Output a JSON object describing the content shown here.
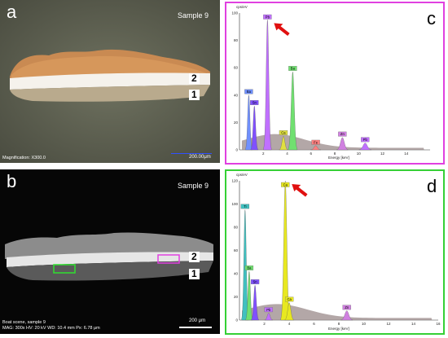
{
  "panels": {
    "a": {
      "letter": "a",
      "sample": "Sample 9",
      "layer1": "1",
      "layer2": "2",
      "magnification": "Magnification: X300.0",
      "scalebar": "200.00μm"
    },
    "b": {
      "letter": "b",
      "sample": "Sample 9",
      "layer1": "1",
      "layer2": "2",
      "caption_line1": "Boat scene, sample 9",
      "caption_line2": "MAG: 300x   HV: 20 kV   WD: 10.4 mm   Px: 6.78 μm",
      "scalebar": "200 μm"
    },
    "c": {
      "letter": "c",
      "y_unit": "cps/eV",
      "x_label": "Energy [keV]",
      "y_ticks": [
        "100",
        "80",
        "60",
        "40",
        "20",
        "0"
      ],
      "x_ticks": [
        "2",
        "4",
        "6",
        "8",
        "10",
        "12",
        "14"
      ],
      "frame_color": "#e040e0"
    },
    "d": {
      "letter": "d",
      "y_unit": "cps/eV",
      "x_label": "Energy [keV]",
      "y_ticks": [
        "120",
        "100",
        "80",
        "60",
        "40",
        "20",
        "0"
      ],
      "x_ticks": [
        "2",
        "4",
        "6",
        "8",
        "10",
        "12",
        "14",
        "16"
      ],
      "frame_color": "#35d035"
    }
  },
  "chart_data": [
    {
      "type": "area",
      "panel": "c",
      "xlabel": "Energy [keV]",
      "ylabel": "cps/eV",
      "xlim": [
        0,
        16
      ],
      "ylim": [
        0,
        100
      ],
      "peaks": [
        {
          "label": "Pb",
          "x": 2.35,
          "y": 95,
          "color": "#c070ff"
        },
        {
          "label": "Ba",
          "x": 4.47,
          "y": 57,
          "color": "#70e070"
        },
        {
          "label": "Ba",
          "x": 0.78,
          "y": 40,
          "color": "#7090ff"
        },
        {
          "label": "Sn",
          "x": 1.25,
          "y": 32,
          "color": "#8050ff"
        },
        {
          "label": "Ca",
          "x": 3.69,
          "y": 10,
          "color": "#e0e040"
        },
        {
          "label": "Zn",
          "x": 8.64,
          "y": 9,
          "color": "#d080e0"
        },
        {
          "label": "Pb",
          "x": 10.55,
          "y": 5,
          "color": "#c070ff"
        },
        {
          "label": "Fe",
          "x": 6.4,
          "y": 3,
          "color": "#ff8080"
        }
      ]
    },
    {
      "type": "area",
      "panel": "d",
      "xlabel": "Energy [keV]",
      "ylabel": "cps/eV",
      "xlim": [
        0,
        16
      ],
      "ylim": [
        0,
        120
      ],
      "peaks": [
        {
          "label": "Ca",
          "x": 3.69,
          "y": 120,
          "color": "#e8e820"
        },
        {
          "label": "Ti",
          "x": 0.45,
          "y": 95,
          "color": "#40c0c0"
        },
        {
          "label": "Ba",
          "x": 0.78,
          "y": 42,
          "color": "#70e070"
        },
        {
          "label": "Sn",
          "x": 1.25,
          "y": 30,
          "color": "#8050ff"
        },
        {
          "label": "Ca",
          "x": 4.01,
          "y": 15,
          "color": "#e8e820"
        },
        {
          "label": "Zn",
          "x": 8.64,
          "y": 8,
          "color": "#d080e0"
        },
        {
          "label": "Pb",
          "x": 2.35,
          "y": 6,
          "color": "#c070ff"
        }
      ]
    }
  ]
}
